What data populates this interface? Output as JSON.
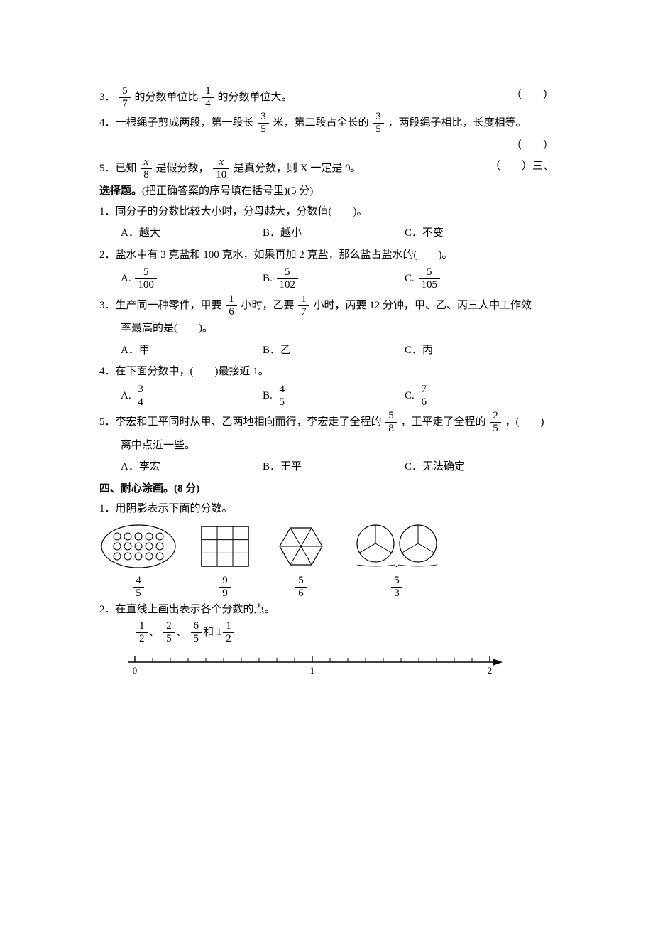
{
  "q3": {
    "text_a": "3．",
    "f1_num": "5",
    "f1_den": "7",
    "text_b": "的分数单位比",
    "f2_num": "1",
    "f2_den": "4",
    "text_c": "的分数单位大。",
    "paren": "（　　）"
  },
  "q4": {
    "text_a": "4．一根绳子剪成两段，第一段长",
    "f1_num": "3",
    "f1_den": "5",
    "text_b": "米，第二段占全长的",
    "f2_num": "3",
    "f2_den": "5",
    "text_c": "，两段绳子相比，长度相等。",
    "paren": "（　　）"
  },
  "q5": {
    "text_a": "5．已知",
    "f1_num": "x",
    "f1_den": "8",
    "text_b": "是假分数，",
    "f2_num": "x",
    "f2_den": "10",
    "text_c": "是真分数，则 X 一定是 9。",
    "paren": "（　　）",
    "tail": "三、"
  },
  "sec3": {
    "title": "选择题。",
    "note": "(把正确答案的序号填在括号里)(5 分)"
  },
  "s3": {
    "q1": {
      "stem": "1．同分子的分数比较大小时，分母越大，分数值(　　)。",
      "A": "A．越大",
      "B": "B．越小",
      "C": "C．不变"
    },
    "q2": {
      "stem": "2．盐水中有 3 克盐和 100 克水，如果再加 2 克盐，那么盐占盐水的(　　)。",
      "A_label": "A.",
      "A_num": "5",
      "A_den": "100",
      "B_label": "B.",
      "B_num": "5",
      "B_den": "102",
      "C_label": "C.",
      "C_num": "5",
      "C_den": "105"
    },
    "q3": {
      "stem_a": "3．生产同一种零件，甲要",
      "f1_num": "1",
      "f1_den": "6",
      "stem_b": "小时，乙要",
      "f2_num": "1",
      "f2_den": "7",
      "stem_c": "小时，丙要 12 分钟，甲、乙、丙三人中工作效",
      "stem_d": "率最高的是(　　)。",
      "A": "A．甲",
      "B": "B．乙",
      "C": "C．丙"
    },
    "q4": {
      "stem": "4．在下面分数中，(　　)最接近 1。",
      "A_label": "A.",
      "A_num": "3",
      "A_den": "4",
      "B_label": "B.",
      "B_num": "4",
      "B_den": "5",
      "C_label": "C.",
      "C_num": "7",
      "C_den": "6"
    },
    "q5": {
      "stem_a": "5．李宏和王平同时从甲、乙两地相向而行，李宏走了全程的",
      "f1_num": "5",
      "f1_den": "8",
      "stem_b": "，王平走了全程的",
      "f2_num": "2",
      "f2_den": "5",
      "stem_c": "，(　　)",
      "stem_d": "离中点近一些。",
      "A": "A．李宏",
      "B": "B．王平",
      "C": "C．无法确定"
    }
  },
  "sec4": {
    "title": "四、耐心涂画。(8 分)"
  },
  "s4q1": {
    "stem": "1．用阴影表示下面的分数。",
    "fig1_num": "4",
    "fig1_den": "5",
    "fig1": {
      "rows": 3,
      "cols": 5,
      "rx": 52,
      "ry": 30,
      "dot_r": 5
    },
    "fig2_num": "9",
    "fig2_den": "9",
    "fig2": {
      "rows": 3,
      "cols": 3
    },
    "fig3_num": "5",
    "fig3_den": "6",
    "fig4_num": "5",
    "fig4_den": "3"
  },
  "s4q2": {
    "stem": "2．在直线上画出表示各个分数的点。",
    "list_a_num": "1",
    "list_a_den": "2",
    "sep1": "、",
    "list_b_num": "2",
    "list_b_den": "5",
    "sep2": "、",
    "list_c_num": "6",
    "list_c_den": "5",
    "and": "和 1",
    "list_d_num": "1",
    "list_d_den": "2",
    "axis": {
      "min": 0,
      "max": 2,
      "minor_per_unit": 10,
      "labels": [
        "0",
        "1",
        "2"
      ]
    }
  },
  "style": {
    "stroke": "#000",
    "fill": "#fff"
  }
}
